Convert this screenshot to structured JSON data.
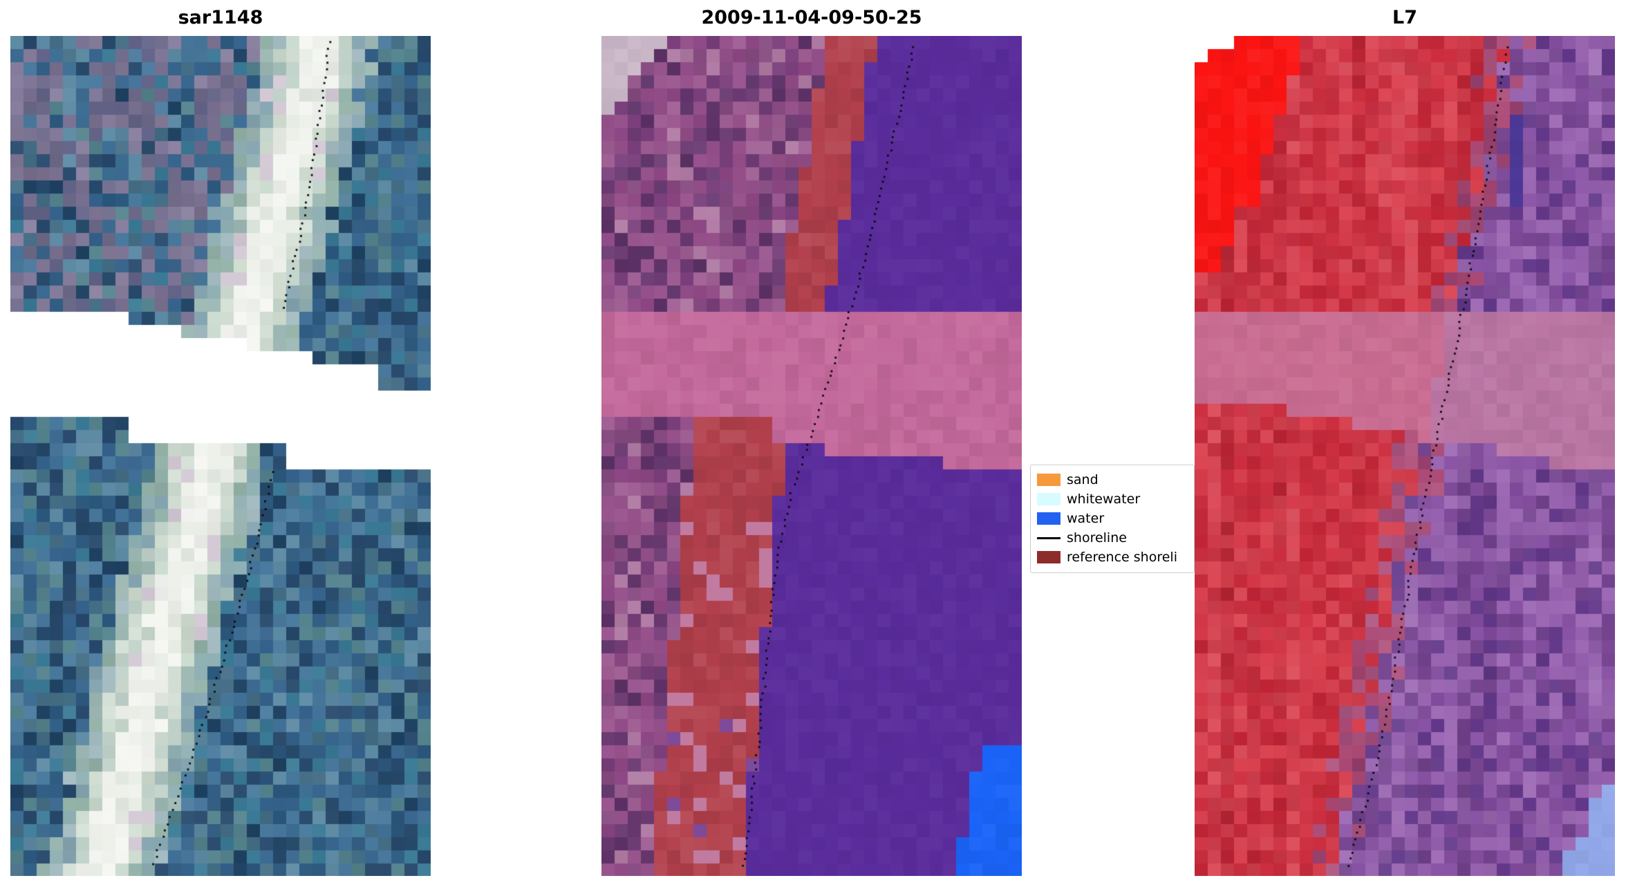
{
  "figure": {
    "background": "#ffffff"
  },
  "panels": [
    {
      "title": "sar1148"
    },
    {
      "title": "2009-11-04-09-50-25"
    },
    {
      "title": "L7"
    }
  ],
  "legend": {
    "items": [
      {
        "label": "sand",
        "type": "patch",
        "color": "#f5993d"
      },
      {
        "label": "whitewater",
        "type": "patch",
        "color": "#d8fbff"
      },
      {
        "label": "water",
        "type": "patch",
        "color": "#2361f0"
      },
      {
        "label": "shoreline",
        "type": "line",
        "color": "#000000"
      },
      {
        "label": "reference shoreli",
        "type": "patch",
        "color": "#8e2c2c"
      }
    ]
  },
  "chart_data": {
    "type": "heatmap",
    "title": "",
    "panels": [
      {
        "title": "sar1148",
        "kind": "sar-rgb-image",
        "colors": {
          "water_blue": "#3a6c94",
          "shoreline_band": "#f2f4f0",
          "upper_haze": "#6e6b8b",
          "nodata": "#ffffff"
        }
      },
      {
        "title": "2009-11-04-09-50-25",
        "kind": "classified-image",
        "colors": {
          "water_overlay": "#5a2c9c",
          "reference_shoreline_band": "#b2404c",
          "cross_band": "#c4699c",
          "land": "#8d4784",
          "water_patch": "#1a64f8",
          "nodata_stair": "#ccb9ca"
        }
      },
      {
        "title": "L7",
        "kind": "false-color-image",
        "colors": {
          "land_red": "#cd2f40",
          "water_purple": "#8a54a6",
          "cross_band": "#c76f9a",
          "hot_patch": "#fb1412",
          "water_patch": "#92a8ea"
        }
      }
    ],
    "legend_entries": [
      "sand",
      "whitewater",
      "water",
      "shoreline",
      "reference shoreli"
    ],
    "shoreline_style": "black dotted line through each panel"
  }
}
